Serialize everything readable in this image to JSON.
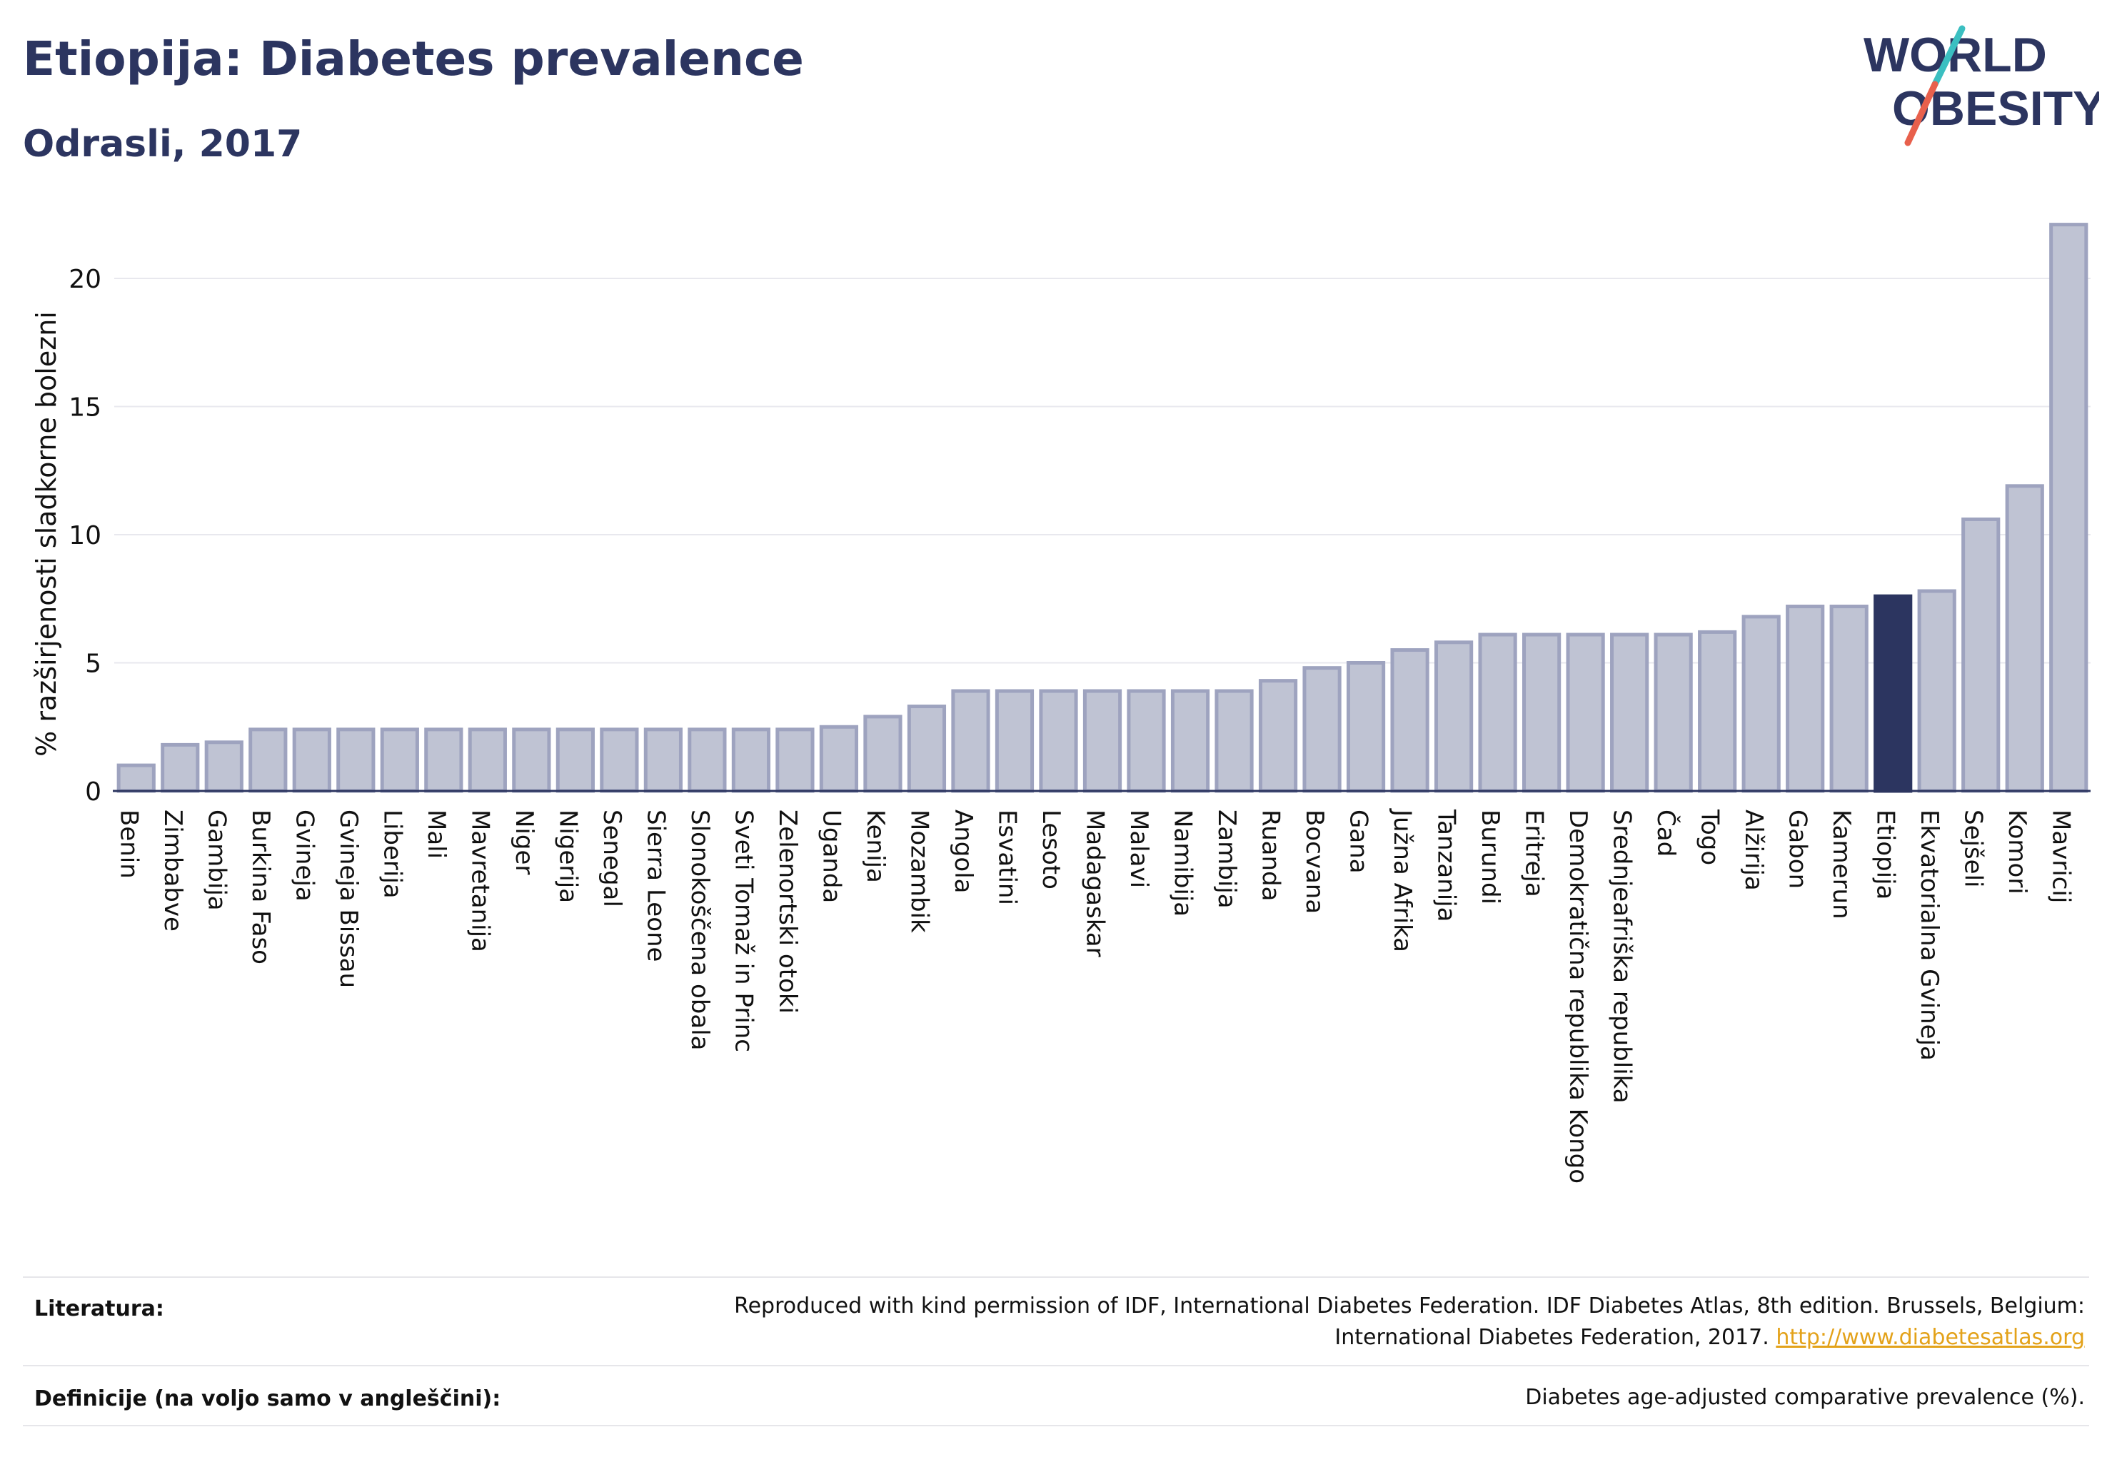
{
  "header": {
    "title": "Etiopija: Diabetes prevalence",
    "subtitle": "Odrasli, 2017"
  },
  "logo": {
    "line1": "WORLD",
    "line2": "OBESITY",
    "colors": {
      "text": "#2c3560",
      "slash_teal": "#3bbfc1",
      "slash_red": "#e8604c"
    }
  },
  "colors": {
    "bar_fill": "#bfc3d3",
    "bar_stroke": "#9ea3bf",
    "highlight": "#2c3560",
    "grid": "#e8e8ee",
    "axis": "#2c3560"
  },
  "chart_data": {
    "type": "bar",
    "ylabel": "% razširjenosti sladkorne bolezni",
    "ylim": [
      0,
      22
    ],
    "yticks": [
      0,
      5,
      10,
      15,
      20
    ],
    "grid": true,
    "highlight": "Etiopija",
    "categories": [
      "Benin",
      "Zimbabve",
      "Gambija",
      "Burkina Faso",
      "Gvineja",
      "Gvineja Bissau",
      "Liberija",
      "Mali",
      "Mavretanija",
      "Niger",
      "Nigerija",
      "Senegal",
      "Sierra Leone",
      "Slonokoščena obala",
      "Sveti Tomaž in Princ",
      "Zelenortski otoki",
      "Uganda",
      "Kenija",
      "Mozambik",
      "Angola",
      "Esvatini",
      "Lesoto",
      "Madagaskar",
      "Malavi",
      "Namibija",
      "Zambija",
      "Ruanda",
      "Bocvana",
      "Gana",
      "Južna Afrika",
      "Tanzanija",
      "Burundi",
      "Eritreja",
      "Demokratična republika Kongo",
      "Srednjeafriška republika",
      "Čad",
      "Togo",
      "Alžirija",
      "Gabon",
      "Kamerun",
      "Etiopija",
      "Ekvatorialna Gvineja",
      "Sejšeli",
      "Komori",
      "Mavricij"
    ],
    "values": [
      1.0,
      1.8,
      1.9,
      2.4,
      2.4,
      2.4,
      2.4,
      2.4,
      2.4,
      2.4,
      2.4,
      2.4,
      2.4,
      2.4,
      2.4,
      2.4,
      2.5,
      2.9,
      3.3,
      3.9,
      3.9,
      3.9,
      3.9,
      3.9,
      3.9,
      3.9,
      4.3,
      4.8,
      5.0,
      5.5,
      5.8,
      6.1,
      6.1,
      6.1,
      6.1,
      6.1,
      6.2,
      6.8,
      7.2,
      7.2,
      7.6,
      7.8,
      10.6,
      11.9,
      22.1
    ]
  },
  "footer": {
    "references_label": "Literatura:",
    "references_line1": "Reproduced with kind permission of IDF, International Diabetes Federation. IDF Diabetes Atlas, 8th edition. Brussels, Belgium:",
    "references_line2": "International Diabetes Federation, 2017.",
    "references_link": "http://www.diabetesatlas.org",
    "definitions_label": "Definicije (na voljo samo v angleščini):",
    "definitions_text": "Diabetes age-adjusted comparative prevalence (%)."
  }
}
